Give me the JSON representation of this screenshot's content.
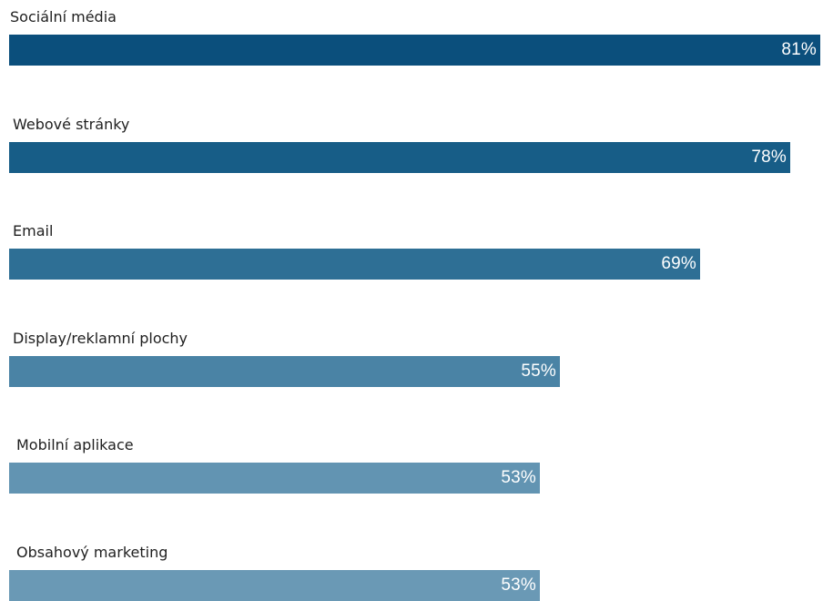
{
  "chart_data": {
    "type": "bar",
    "orientation": "horizontal",
    "categories": [
      "Sociální média",
      "Webové stránky",
      "Email",
      "Display/reklamní plochy",
      "Mobilní aplikace",
      "Obsahový marketing"
    ],
    "values": [
      81,
      78,
      69,
      55,
      53,
      53
    ],
    "value_labels": [
      "81%",
      "78%",
      "69%",
      "55%",
      "53%",
      "53%"
    ],
    "colors": [
      "#0b4f7c",
      "#175d87",
      "#2e6f95",
      "#4a83a5",
      "#6294b2",
      "#6a99b5"
    ],
    "title": "",
    "xlabel": "",
    "ylabel": "",
    "grid": false,
    "legend": "none"
  }
}
